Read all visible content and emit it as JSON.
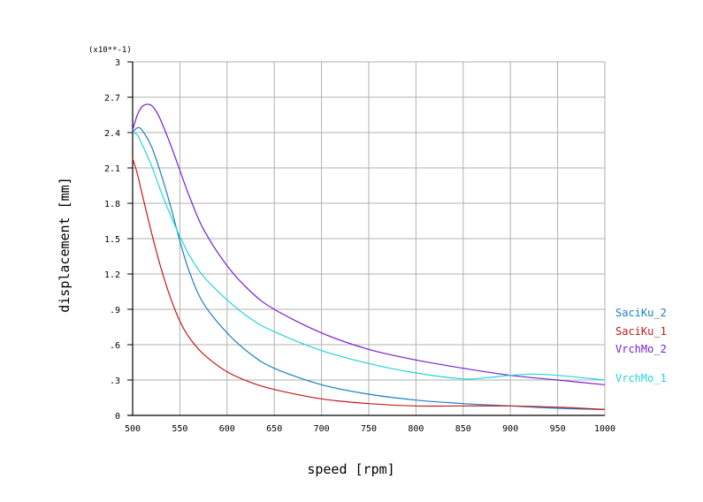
{
  "chart_data": {
    "type": "line",
    "xlabel": "speed [rpm]",
    "ylabel": "displacement [mm]",
    "y_multiplier_label": "(x10**-1)",
    "xlim": [
      500,
      1000
    ],
    "ylim": [
      0,
      3
    ],
    "x_ticks": [
      500,
      550,
      600,
      650,
      700,
      750,
      800,
      850,
      900,
      950,
      1000
    ],
    "x_tick_labels": [
      "500",
      "550",
      "600",
      "650",
      "700",
      "750",
      "800",
      "850",
      "900",
      "950",
      "1000"
    ],
    "y_ticks": [
      0,
      0.3,
      0.6,
      0.9,
      1.2,
      1.5,
      1.8,
      2.1,
      2.4,
      2.7,
      3
    ],
    "y_tick_labels": [
      "0",
      ".3",
      ".6",
      ".9",
      "1.2",
      "1.5",
      "1.8",
      "2.1",
      "2.4",
      "2.7",
      "3"
    ],
    "grid": true,
    "legend_position": "right",
    "series": [
      {
        "name": "SaciKu_2",
        "color": "#1a7fc0",
        "x": [
          500,
          505,
          510,
          520,
          530,
          540,
          550,
          560,
          575,
          600,
          625,
          650,
          700,
          750,
          800,
          850,
          900,
          950,
          1000
        ],
        "y": [
          2.4,
          2.44,
          2.42,
          2.28,
          2.05,
          1.78,
          1.48,
          1.22,
          0.95,
          0.7,
          0.52,
          0.4,
          0.26,
          0.18,
          0.13,
          0.1,
          0.08,
          0.06,
          0.05
        ]
      },
      {
        "name": "SaciKu_1",
        "color": "#c41a1a",
        "x": [
          500,
          505,
          510,
          520,
          530,
          540,
          550,
          560,
          575,
          600,
          625,
          650,
          700,
          750,
          800,
          850,
          900,
          950,
          1000
        ],
        "y": [
          2.18,
          2.05,
          1.88,
          1.55,
          1.25,
          1.0,
          0.8,
          0.66,
          0.52,
          0.37,
          0.28,
          0.22,
          0.14,
          0.1,
          0.08,
          0.08,
          0.08,
          0.07,
          0.05
        ]
      },
      {
        "name": "VrchMo_2",
        "color": "#7a1fd0",
        "x": [
          500,
          505,
          510,
          515,
          520,
          525,
          530,
          540,
          550,
          560,
          575,
          600,
          625,
          650,
          700,
          750,
          800,
          850,
          900,
          950,
          1000
        ],
        "y": [
          2.42,
          2.55,
          2.62,
          2.64,
          2.63,
          2.58,
          2.5,
          2.3,
          2.08,
          1.86,
          1.58,
          1.27,
          1.05,
          0.9,
          0.7,
          0.56,
          0.47,
          0.4,
          0.34,
          0.3,
          0.26
        ]
      },
      {
        "name": "VrchMo_1",
        "color": "#22d4dc",
        "x": [
          500,
          505,
          510,
          520,
          530,
          540,
          550,
          560,
          575,
          600,
          625,
          650,
          700,
          750,
          800,
          850,
          875,
          900,
          925,
          950,
          1000
        ],
        "y": [
          2.4,
          2.38,
          2.3,
          2.12,
          1.9,
          1.7,
          1.52,
          1.36,
          1.18,
          0.98,
          0.82,
          0.71,
          0.55,
          0.44,
          0.36,
          0.31,
          0.32,
          0.34,
          0.35,
          0.34,
          0.3
        ]
      }
    ]
  }
}
